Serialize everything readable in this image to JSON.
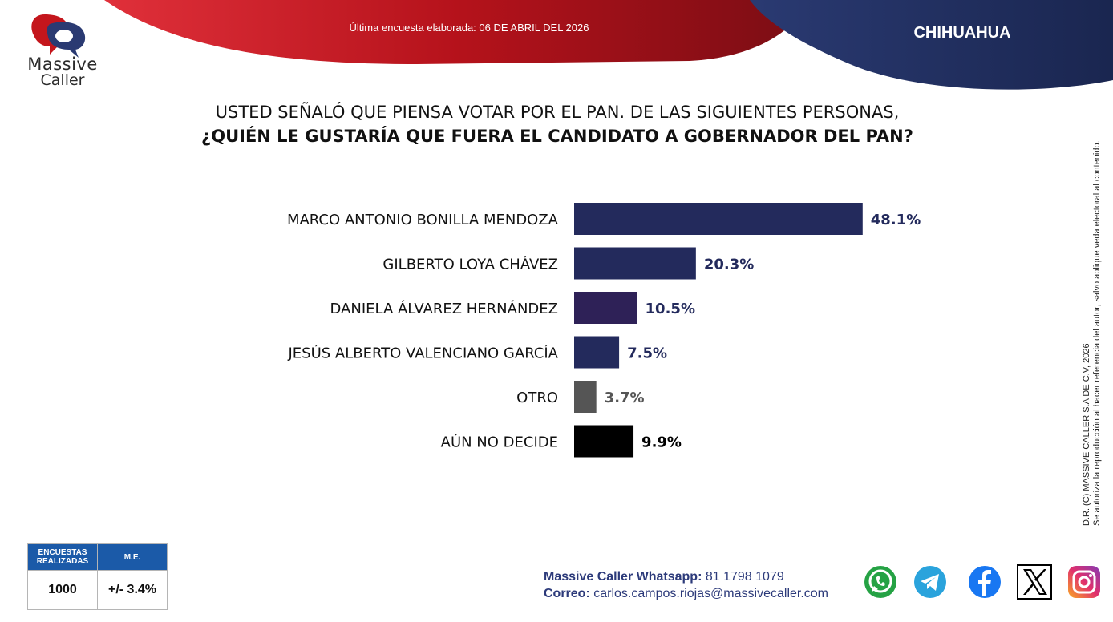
{
  "header": {
    "logo_line1": "Massive",
    "logo_line2": "Caller",
    "survey_date": "Última encuesta elaborada: 06 DE ABRIL DEL 2026",
    "region": "CHIHUAHUA"
  },
  "question": {
    "line1": "USTED SEÑALÓ QUE PIENSA VOTAR POR EL PAN. DE LAS SIGUIENTES PERSONAS,",
    "line2": "¿QUIÉN LE GUSTARÍA QUE FUERA EL CANDIDATO A GOBERNADOR DEL PAN?"
  },
  "chart_data": {
    "type": "bar",
    "orientation": "horizontal",
    "categories": [
      "MARCO ANTONIO BONILLA MENDOZA",
      "GILBERTO LOYA CHÁVEZ",
      "DANIELA ÁLVAREZ HERNÁNDEZ",
      "JESÚS ALBERTO VALENCIANO GARCÍA",
      "OTRO",
      "AÚN NO DECIDE"
    ],
    "values": [
      48.1,
      20.3,
      10.5,
      7.5,
      3.7,
      9.9
    ],
    "value_labels": [
      "48.1%",
      "20.3%",
      "10.5%",
      "7.5%",
      "3.7%",
      "9.9%"
    ],
    "colors": [
      "#232a5c",
      "#232a5c",
      "#2e2157",
      "#232a5c",
      "#555555",
      "#000000"
    ],
    "label_colors": [
      "#232a5c",
      "#232a5c",
      "#232a5c",
      "#232a5c",
      "#555555",
      "#000000"
    ],
    "xlim": [
      0,
      50
    ],
    "title": "",
    "xlabel": "",
    "ylabel": "",
    "grid": false
  },
  "copyright": {
    "line1": "D.R. (C) MASSIVE CALLER S.A DE C.V, 2026",
    "line2": "Se autoriza la reproducción al hacer referencia del autor, salvo aplique veda electoral al contenido."
  },
  "stats": {
    "surveys_header": "ENCUESTAS REALIZADAS",
    "surveys_value": "1000",
    "me_header": "M.E.",
    "me_value": "+/- 3.4%"
  },
  "contact": {
    "whatsapp_label": "Massive Caller Whatsapp:",
    "whatsapp_number": "81 1798 1079",
    "email_label": "Correo:",
    "email": "carlos.campos.riojas@massivecaller.com"
  },
  "social_icons": [
    "whatsapp-icon",
    "telegram-icon",
    "facebook-icon",
    "x-icon",
    "instagram-icon"
  ],
  "colors": {
    "red_banner": "#b5121b",
    "navy_banner": "#1f2d5c",
    "stats_header": "#1b5aa8"
  }
}
